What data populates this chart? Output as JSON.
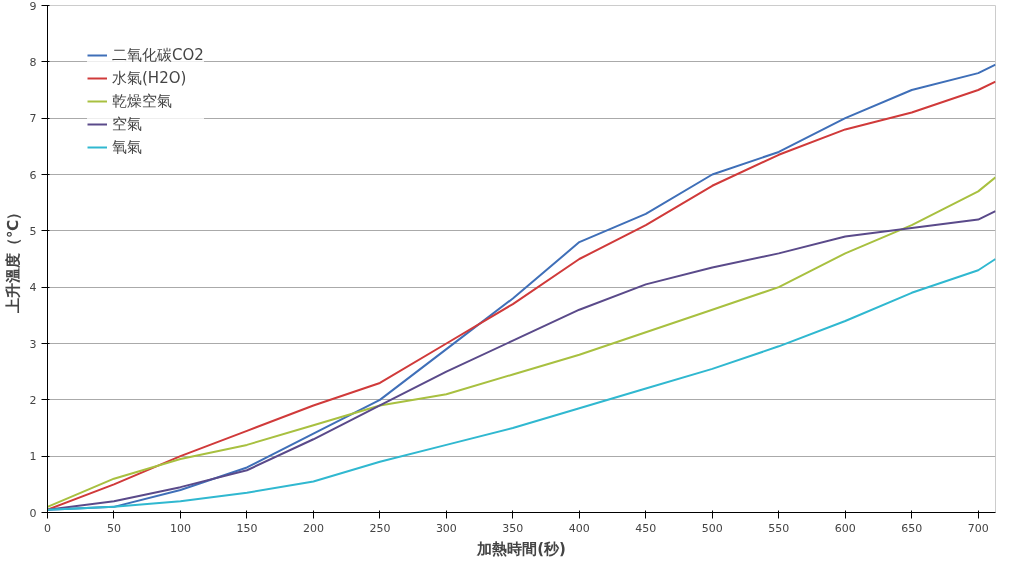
{
  "chart_data": {
    "type": "line",
    "xlabel": "加熱時間(秒)",
    "ylabel": "上升溫度（℃）",
    "xlim": [
      0,
      713
    ],
    "xticks": [
      0,
      50,
      100,
      150,
      200,
      250,
      300,
      350,
      400,
      450,
      500,
      550,
      600,
      650,
      700
    ],
    "ylim": [
      0,
      9
    ],
    "yticks": [
      0,
      1,
      2,
      3,
      4,
      5,
      6,
      7,
      8,
      9
    ],
    "grid": "y",
    "legend": "top left",
    "marker": "none",
    "line_style": "solid",
    "x": [
      0,
      50,
      100,
      150,
      200,
      250,
      300,
      350,
      400,
      450,
      500,
      550,
      600,
      650,
      700,
      713
    ],
    "series": [
      {
        "name": "二氧化碳CO2",
        "color": "#3f6fb8",
        "values": [
          0.05,
          0.1,
          0.4,
          0.8,
          1.4,
          2.0,
          2.9,
          3.8,
          4.8,
          5.3,
          6.0,
          6.4,
          7.0,
          7.5,
          7.8,
          7.95
        ]
      },
      {
        "name": "水氣(H2O)",
        "color": "#d03a3a",
        "values": [
          0.05,
          0.5,
          1.0,
          1.45,
          1.9,
          2.3,
          3.0,
          3.7,
          4.5,
          5.1,
          5.8,
          6.35,
          6.8,
          7.1,
          7.5,
          7.65
        ]
      },
      {
        "name": "乾燥空氣",
        "color": "#a8c040",
        "values": [
          0.1,
          0.6,
          0.95,
          1.2,
          1.55,
          1.9,
          2.1,
          2.45,
          2.8,
          3.2,
          3.6,
          4.0,
          4.6,
          5.1,
          5.7,
          5.95
        ]
      },
      {
        "name": "空氣",
        "color": "#5a4a8a",
        "values": [
          0.05,
          0.2,
          0.45,
          0.75,
          1.3,
          1.9,
          2.5,
          3.05,
          3.6,
          4.05,
          4.35,
          4.6,
          4.9,
          5.05,
          5.2,
          5.35
        ]
      },
      {
        "name": "氧氣",
        "color": "#30b8d0",
        "values": [
          0.05,
          0.1,
          0.2,
          0.35,
          0.55,
          0.9,
          1.2,
          1.5,
          1.85,
          2.2,
          2.55,
          2.95,
          3.4,
          3.9,
          4.3,
          4.5
        ]
      }
    ]
  }
}
